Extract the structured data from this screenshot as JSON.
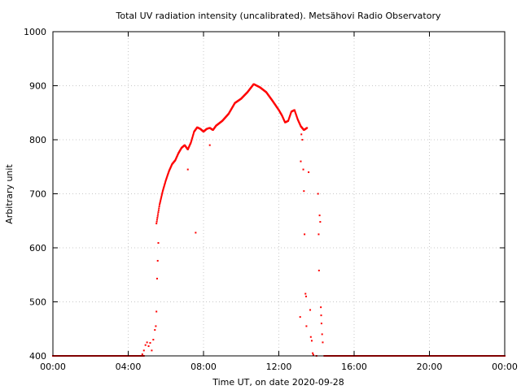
{
  "chart_data": {
    "type": "scatter",
    "title": "Total UV radiation intensity (uncalibrated). Metsähovi Radio Observatory",
    "xlabel": "Time UT, on date 2020-09-28",
    "ylabel": "Arbitrary unit",
    "xlim": [
      "00:00",
      "24:00"
    ],
    "ylim": [
      400,
      1000
    ],
    "x_ticks": [
      "00:00",
      "04:00",
      "08:00",
      "12:00",
      "16:00",
      "20:00",
      "00:00"
    ],
    "y_ticks": [
      "400",
      "500",
      "600",
      "700",
      "800",
      "900",
      "1000"
    ],
    "grid": true,
    "marker_color": "#ff0000",
    "baseline": {
      "value": 400,
      "intervals": [
        [
          "00:00",
          "04:50"
        ],
        [
          "14:25",
          "24:00"
        ]
      ]
    },
    "curve": [
      [
        "05:30",
        645
      ],
      [
        "05:40",
        680
      ],
      [
        "05:50",
        705
      ],
      [
        "06:00",
        725
      ],
      [
        "06:10",
        742
      ],
      [
        "06:20",
        755
      ],
      [
        "06:30",
        762
      ],
      [
        "06:40",
        775
      ],
      [
        "06:50",
        785
      ],
      [
        "07:00",
        790
      ],
      [
        "07:10",
        782
      ],
      [
        "07:20",
        795
      ],
      [
        "07:30",
        815
      ],
      [
        "07:40",
        823
      ],
      [
        "07:50",
        820
      ],
      [
        "08:00",
        815
      ],
      [
        "08:10",
        820
      ],
      [
        "08:20",
        822
      ],
      [
        "08:30",
        818
      ],
      [
        "08:40",
        826
      ],
      [
        "09:00",
        835
      ],
      [
        "09:20",
        848
      ],
      [
        "09:40",
        868
      ],
      [
        "10:00",
        876
      ],
      [
        "10:20",
        888
      ],
      [
        "10:40",
        903
      ],
      [
        "11:00",
        897
      ],
      [
        "11:20",
        888
      ],
      [
        "11:40",
        872
      ],
      [
        "12:00",
        855
      ],
      [
        "12:10",
        845
      ],
      [
        "12:20",
        832
      ],
      [
        "12:30",
        835
      ],
      [
        "12:40",
        852
      ],
      [
        "12:50",
        855
      ],
      [
        "13:00",
        838
      ],
      [
        "13:10",
        825
      ],
      [
        "13:20",
        818
      ],
      [
        "13:30",
        822
      ]
    ],
    "scatter_points": [
      [
        "04:45",
        403
      ],
      [
        "04:50",
        410
      ],
      [
        "04:55",
        420
      ],
      [
        "05:00",
        425
      ],
      [
        "05:05",
        418
      ],
      [
        "05:10",
        424
      ],
      [
        "05:15",
        410
      ],
      [
        "05:20",
        430
      ],
      [
        "05:25",
        448
      ],
      [
        "05:28",
        455
      ],
      [
        "05:30",
        482
      ],
      [
        "05:32",
        543
      ],
      [
        "05:34",
        576
      ],
      [
        "05:36",
        609
      ],
      [
        "07:10",
        745
      ],
      [
        "07:35",
        628
      ],
      [
        "08:20",
        790
      ],
      [
        "13:10",
        760
      ],
      [
        "13:12",
        810
      ],
      [
        "13:15",
        800
      ],
      [
        "13:18",
        745
      ],
      [
        "13:20",
        705
      ],
      [
        "13:22",
        625
      ],
      [
        "13:25",
        515
      ],
      [
        "13:27",
        510
      ],
      [
        "13:08",
        472
      ],
      [
        "13:28",
        455
      ],
      [
        "13:35",
        740
      ],
      [
        "13:40",
        485
      ],
      [
        "13:42",
        435
      ],
      [
        "13:45",
        428
      ],
      [
        "13:48",
        405
      ],
      [
        "13:50",
        402
      ],
      [
        "14:05",
        700
      ],
      [
        "14:07",
        625
      ],
      [
        "14:08",
        558
      ],
      [
        "14:10",
        660
      ],
      [
        "14:12",
        648
      ],
      [
        "14:14",
        490
      ],
      [
        "14:15",
        475
      ],
      [
        "14:16",
        460
      ],
      [
        "14:18",
        440
      ],
      [
        "14:20",
        425
      ],
      [
        "14:00",
        400
      ]
    ]
  }
}
